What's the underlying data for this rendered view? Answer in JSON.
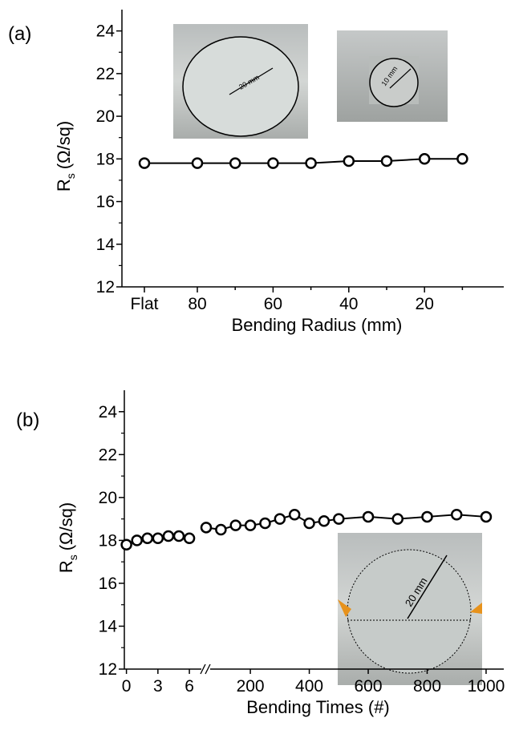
{
  "chart_data": [
    {
      "type": "line",
      "panel": "(a)",
      "xlabel": "Bending Radius (mm)",
      "ylabel": {
        "main": "R",
        "sub": "s",
        "unit": "(Ω/sq)"
      },
      "categories": [
        "Flat",
        "80",
        null,
        "60",
        null,
        "40",
        null,
        "20",
        null
      ],
      "values": [
        17.8,
        17.8,
        17.8,
        17.8,
        17.8,
        17.9,
        17.9,
        18.0,
        18.0
      ],
      "color": "#000000",
      "ylim": [
        12,
        25
      ],
      "yticks": [
        12,
        14,
        16,
        18,
        20,
        22,
        24
      ],
      "yminorticks": [
        13,
        15,
        17,
        19,
        21,
        23
      ],
      "annotations": [
        "20 mm",
        "10 mm"
      ]
    },
    {
      "type": "line",
      "panel": "(b)",
      "xlabel": "Bending Times (#)",
      "ylabel": {
        "main": "R",
        "sub": "s",
        "unit": "(Ω/sq)"
      },
      "segments": [
        {
          "x": [
            0,
            1,
            2,
            3,
            4,
            5,
            6
          ],
          "values": [
            17.8,
            18.0,
            18.1,
            18.1,
            18.2,
            18.2,
            18.1
          ],
          "xlim": [
            -0.2,
            7.6
          ],
          "xticks": [
            0,
            3,
            6
          ],
          "line": false
        },
        {
          "x": [
            50,
            100,
            150,
            200,
            250,
            300,
            350,
            400,
            450,
            500,
            600,
            700,
            800,
            900,
            1000
          ],
          "values": [
            18.6,
            18.5,
            18.7,
            18.7,
            18.8,
            19.0,
            19.2,
            18.8,
            18.9,
            19.0,
            19.1,
            19.0,
            19.1,
            19.2,
            19.1
          ],
          "xlim": [
            50,
            1060
          ],
          "xticks": [
            200,
            400,
            600,
            800,
            1000
          ],
          "line": true
        }
      ],
      "color": "#000000",
      "ylim": [
        12,
        25
      ],
      "yticks": [
        12,
        14,
        16,
        18,
        20,
        22,
        24
      ],
      "yminorticks": [
        13,
        15,
        17,
        19,
        21,
        23
      ],
      "annotations": [
        "20 mm"
      ]
    }
  ]
}
